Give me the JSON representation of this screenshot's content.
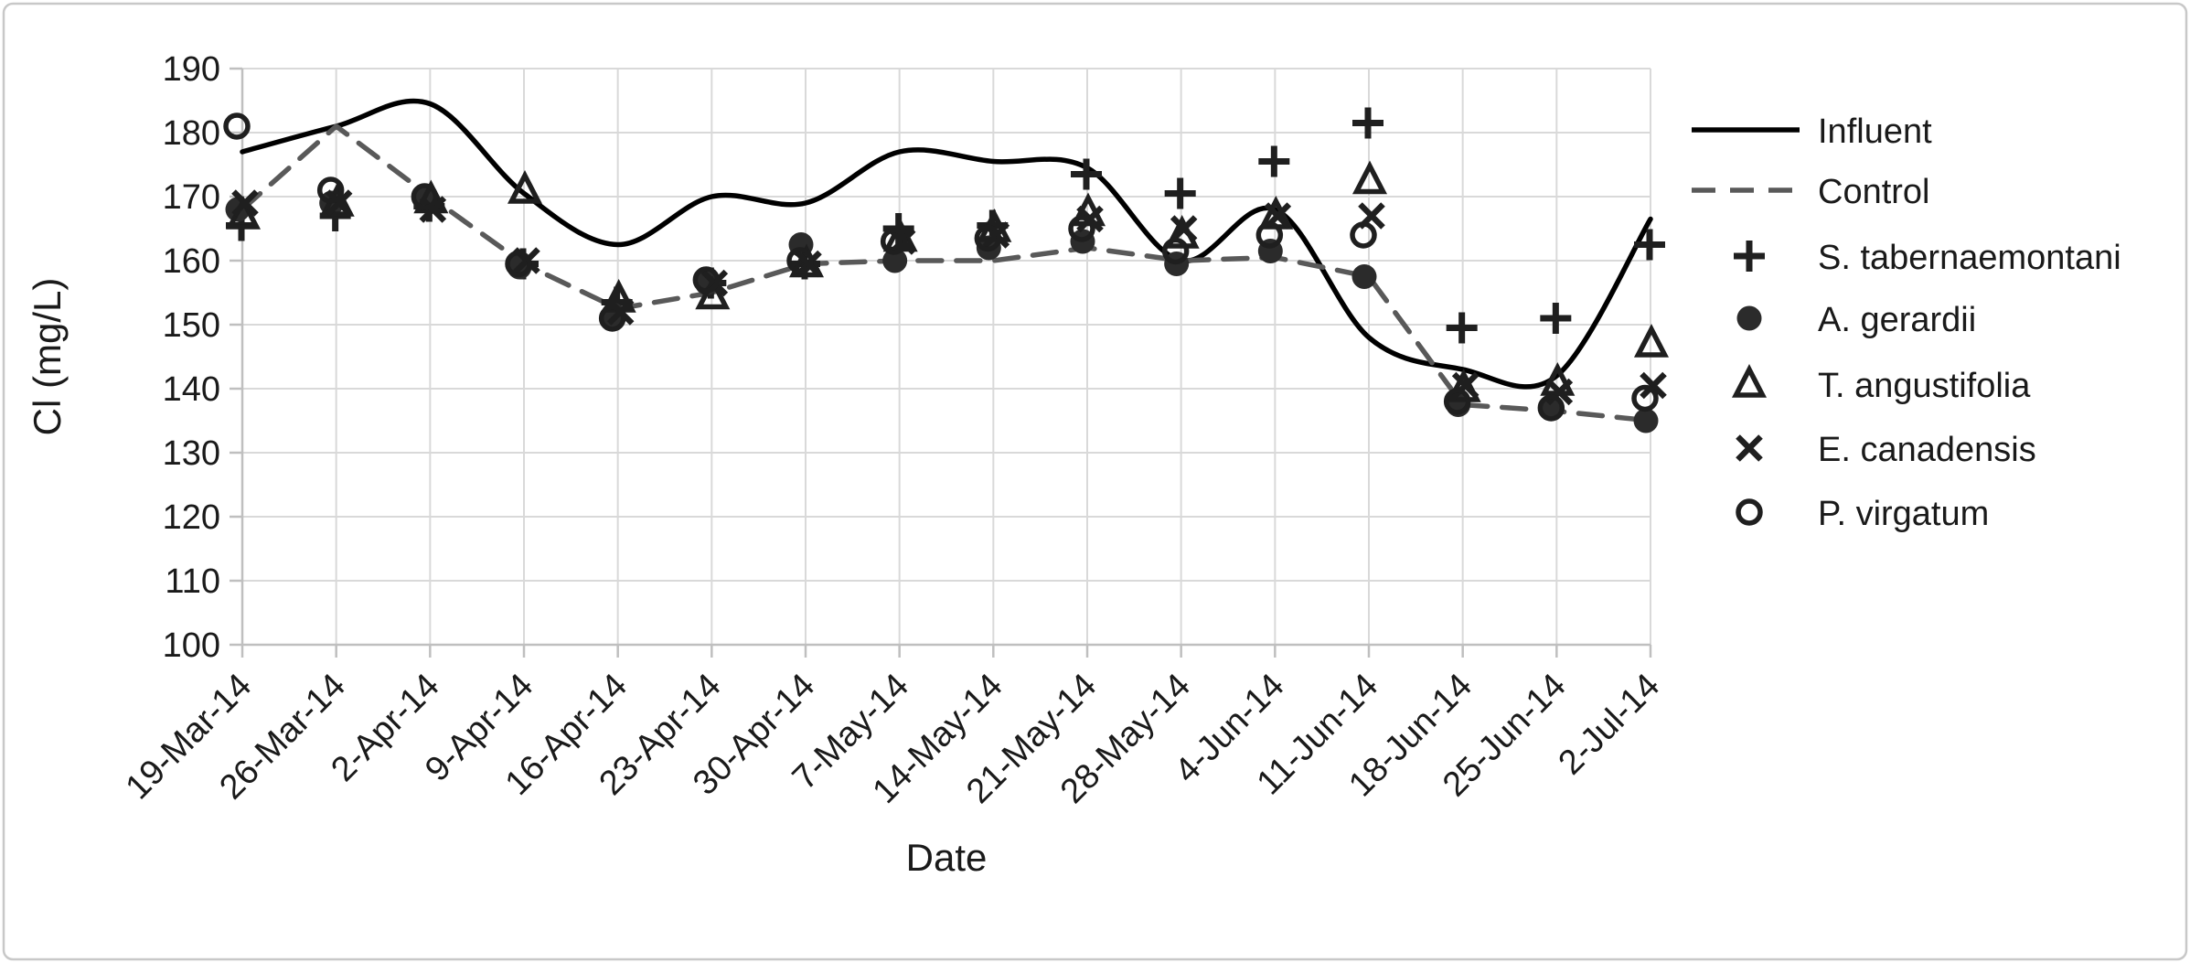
{
  "figure": {
    "background": "#ffffff",
    "frame_border_color": "#c8c8c8",
    "gridline_color": "#d9d9d9",
    "axis_line_color": "#bfbfbf",
    "text_color": "#1a1a1a"
  },
  "chart_data": {
    "type": "line",
    "title": "",
    "xlabel": "Date",
    "ylabel": "Cl (mg/L)",
    "ylim": [
      100,
      190
    ],
    "ytick_step": 10,
    "yticks": [
      190,
      180,
      170,
      160,
      150,
      140,
      130,
      120,
      110,
      100
    ],
    "grid": true,
    "legend_position": "right",
    "categories": [
      "19-Mar-14",
      "26-Mar-14",
      "2-Apr-14",
      "9-Apr-14",
      "16-Apr-14",
      "23-Apr-14",
      "30-Apr-14",
      "7-May-14",
      "14-May-14",
      "21-May-14",
      "28-May-14",
      "4-Jun-14",
      "11-Jun-14",
      "18-Jun-14",
      "25-Jun-14",
      "2-Jul-14"
    ],
    "series": [
      {
        "name": "Influent",
        "kind": "line",
        "line_style": "solid",
        "smooth": true,
        "color": "#000000",
        "values": [
          177,
          181,
          184.5,
          170.5,
          162.5,
          170,
          169,
          177,
          175.5,
          174.5,
          160,
          168,
          148,
          143,
          142,
          166.5
        ]
      },
      {
        "name": "Control",
        "kind": "line",
        "line_style": "dashed",
        "smooth": false,
        "color": "#595959",
        "values": [
          168,
          181,
          170,
          159.5,
          152.5,
          155,
          159.5,
          160,
          160,
          162,
          160,
          160.5,
          157.5,
          137.5,
          136.5,
          135
        ]
      },
      {
        "name": "S. tabernaemontani",
        "kind": "scatter",
        "marker": "plus",
        "color": "#1f1f1f",
        "values": [
          165.5,
          167,
          168.5,
          159.5,
          153.5,
          156.5,
          159.5,
          165,
          165.5,
          173.5,
          170.5,
          175.5,
          181.5,
          149.5,
          151,
          162.5
        ]
      },
      {
        "name": "A. gerardii",
        "kind": "scatter",
        "marker": "dot-filled",
        "color": "#2b2b2b",
        "values": [
          168,
          169,
          169.5,
          159,
          151.5,
          156.5,
          162.5,
          160,
          162,
          163,
          159.5,
          161.5,
          157.5,
          137.5,
          137,
          135
        ]
      },
      {
        "name": "T. angustifolia",
        "kind": "scatter",
        "marker": "triangle-open",
        "color": "#1f1f1f",
        "values": [
          167,
          169,
          169.5,
          171,
          154,
          154.5,
          159.5,
          163.5,
          165,
          167.5,
          164,
          167,
          172.5,
          140,
          141,
          147
        ]
      },
      {
        "name": "E. canadensis",
        "kind": "scatter",
        "marker": "x",
        "color": "#1f1f1f",
        "values": [
          169,
          169,
          168,
          160,
          152,
          156.5,
          159.5,
          163,
          164,
          166.5,
          165,
          167,
          167,
          140.5,
          139.5,
          140.5
        ]
      },
      {
        "name": "P. virgatum",
        "kind": "scatter",
        "marker": "circle-open",
        "color": "#1f1f1f",
        "values": [
          181,
          171,
          170,
          159.5,
          151,
          157,
          160,
          163,
          163.5,
          165,
          161.5,
          164,
          164,
          138,
          137,
          138.5
        ]
      }
    ]
  }
}
